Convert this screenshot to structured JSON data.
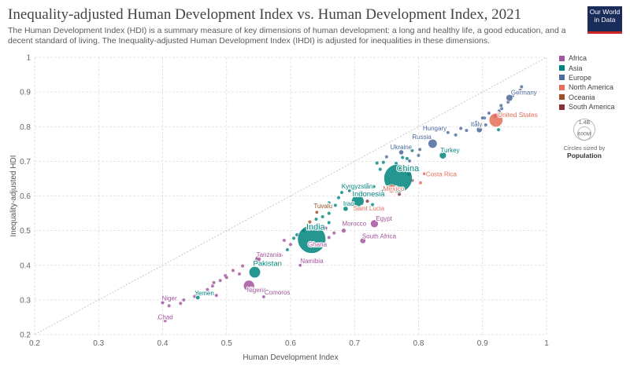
{
  "header": {
    "title": "Inequality-adjusted Human Development Index vs. Human Development Index, 2021",
    "subtitle": "The Human Development Index (HDI) is a summary measure of key dimensions of human development: a long and healthy life, a good education, and a decent standard of living. The Inequality-adjusted Human Development Index (IHDI) is adjusted for inequalities in these dimensions.",
    "logo_line1": "Our World",
    "logo_line2": "in Data"
  },
  "colors": {
    "Africa": "#a2559c",
    "Asia": "#00847e",
    "Europe": "#4c6a9c",
    "North America": "#e56e5a",
    "Oceania": "#9a5129",
    "South America": "#883039"
  },
  "legend": [
    "Africa",
    "Asia",
    "Europe",
    "North America",
    "Oceania",
    "South America"
  ],
  "size_legend": {
    "big": "1.4B",
    "small": "600M",
    "note": "Circles sized by",
    "variable": "Population"
  },
  "chart_data": {
    "type": "scatter",
    "xlabel": "Human Development Index",
    "ylabel": "Inequality-adjusted HDI",
    "xlim": [
      0.2,
      1.0
    ],
    "ylim": [
      0.2,
      1.0
    ],
    "xticks": [
      "0.2",
      "0.3",
      "0.4",
      "0.5",
      "0.6",
      "0.7",
      "0.8",
      "0.9",
      "1"
    ],
    "yticks": [
      "0.2",
      "0.3",
      "0.4",
      "0.5",
      "0.6",
      "0.7",
      "0.8",
      "0.9",
      "1"
    ],
    "grid": true,
    "diagonal": true,
    "legend_position": "top-right",
    "labeled_points": [
      {
        "label": "Germany",
        "region": "Europe",
        "x": 0.942,
        "y": 0.883,
        "pop": 0.083
      },
      {
        "label": "United States",
        "region": "North America",
        "x": 0.921,
        "y": 0.819,
        "pop": 0.336
      },
      {
        "label": "Italy",
        "region": "Europe",
        "x": 0.895,
        "y": 0.791,
        "pop": 0.059
      },
      {
        "label": "Hungary",
        "region": "Europe",
        "x": 0.846,
        "y": 0.783,
        "pop": 0.0097
      },
      {
        "label": "Russia",
        "region": "Europe",
        "x": 0.822,
        "y": 0.751,
        "pop": 0.145
      },
      {
        "label": "Turkey",
        "region": "Asia",
        "x": 0.838,
        "y": 0.717,
        "pop": 0.085
      },
      {
        "label": "Ukraine",
        "region": "Europe",
        "x": 0.773,
        "y": 0.726,
        "pop": 0.043
      },
      {
        "label": "China",
        "region": "Asia",
        "x": 0.768,
        "y": 0.651,
        "pop": 1.425
      },
      {
        "label": "Costa Rica",
        "region": "North America",
        "x": 0.809,
        "y": 0.664,
        "pop": 0.0052
      },
      {
        "label": "Mexico",
        "region": "North America",
        "x": 0.758,
        "y": 0.621,
        "pop": 0.126
      },
      {
        "label": "Kyrgyzstan",
        "region": "Asia",
        "x": 0.692,
        "y": 0.615,
        "pop": 0.0067
      },
      {
        "label": "Indonesia",
        "region": "Asia",
        "x": 0.705,
        "y": 0.585,
        "pop": 0.274
      },
      {
        "label": "Iraq",
        "region": "Asia",
        "x": 0.686,
        "y": 0.563,
        "pop": 0.044
      },
      {
        "label": "Saint Lucia",
        "region": "North America",
        "x": 0.715,
        "y": 0.56,
        "pop": 0.00018
      },
      {
        "label": "Tuvalu",
        "region": "Oceania",
        "x": 0.641,
        "y": 0.553,
        "pop": 1e-05
      },
      {
        "label": "Egypt",
        "region": "Africa",
        "x": 0.731,
        "y": 0.52,
        "pop": 0.109
      },
      {
        "label": "Morocco",
        "region": "Africa",
        "x": 0.683,
        "y": 0.5,
        "pop": 0.037
      },
      {
        "label": "India",
        "region": "Asia",
        "x": 0.633,
        "y": 0.475,
        "pop": 1.408
      },
      {
        "label": "South Africa",
        "region": "Africa",
        "x": 0.713,
        "y": 0.471,
        "pop": 0.06
      },
      {
        "label": "Ghana",
        "region": "Africa",
        "x": 0.632,
        "y": 0.458,
        "pop": 0.033
      },
      {
        "label": "Namibia",
        "region": "Africa",
        "x": 0.615,
        "y": 0.4,
        "pop": 0.0025
      },
      {
        "label": "Tanzania",
        "region": "Africa",
        "x": 0.549,
        "y": 0.418,
        "pop": 0.064
      },
      {
        "label": "Pakistan",
        "region": "Asia",
        "x": 0.544,
        "y": 0.38,
        "pop": 0.231
      },
      {
        "label": "Nigeria",
        "region": "Africa",
        "x": 0.535,
        "y": 0.341,
        "pop": 0.213
      },
      {
        "label": "Comoros",
        "region": "Africa",
        "x": 0.558,
        "y": 0.309,
        "pop": 0.00082
      },
      {
        "label": "Yemen",
        "region": "Asia",
        "x": 0.455,
        "y": 0.307,
        "pop": 0.033
      },
      {
        "label": "Niger",
        "region": "Africa",
        "x": 0.4,
        "y": 0.292,
        "pop": 0.025
      },
      {
        "label": "Chad",
        "region": "Africa",
        "x": 0.394,
        "y": 0.247,
        "pop": 0.017
      }
    ],
    "unlabeled_points": [
      {
        "region": "Europe",
        "x": 0.961,
        "y": 0.915
      },
      {
        "region": "Europe",
        "x": 0.959,
        "y": 0.905
      },
      {
        "region": "Europe",
        "x": 0.952,
        "y": 0.898
      },
      {
        "region": "Europe",
        "x": 0.947,
        "y": 0.889
      },
      {
        "region": "Europe",
        "x": 0.94,
        "y": 0.871
      },
      {
        "region": "Europe",
        "x": 0.93,
        "y": 0.852
      },
      {
        "region": "Europe",
        "x": 0.926,
        "y": 0.845
      },
      {
        "region": "Europe",
        "x": 0.929,
        "y": 0.861
      },
      {
        "region": "Asia",
        "x": 0.925,
        "y": 0.838
      },
      {
        "region": "Europe",
        "x": 0.92,
        "y": 0.83
      },
      {
        "region": "Europe",
        "x": 0.91,
        "y": 0.839
      },
      {
        "region": "Europe",
        "x": 0.903,
        "y": 0.825
      },
      {
        "region": "Asia",
        "x": 0.925,
        "y": 0.791
      },
      {
        "region": "Europe",
        "x": 0.905,
        "y": 0.805
      },
      {
        "region": "Europe",
        "x": 0.9,
        "y": 0.825
      },
      {
        "region": "Europe",
        "x": 0.89,
        "y": 0.812
      },
      {
        "region": "Europe",
        "x": 0.875,
        "y": 0.789
      },
      {
        "region": "Europe",
        "x": 0.866,
        "y": 0.795
      },
      {
        "region": "Europe",
        "x": 0.858,
        "y": 0.776
      },
      {
        "region": "Asia",
        "x": 0.81,
        "y": 0.766
      },
      {
        "region": "Europe",
        "x": 0.802,
        "y": 0.734
      },
      {
        "region": "Europe",
        "x": 0.8,
        "y": 0.717
      },
      {
        "region": "Asia",
        "x": 0.79,
        "y": 0.731
      },
      {
        "region": "Asia",
        "x": 0.782,
        "y": 0.708
      },
      {
        "region": "Europe",
        "x": 0.786,
        "y": 0.701
      },
      {
        "region": "Asia",
        "x": 0.775,
        "y": 0.711
      },
      {
        "region": "Asia",
        "x": 0.765,
        "y": 0.694
      },
      {
        "region": "Asia",
        "x": 0.745,
        "y": 0.697
      },
      {
        "region": "Europe",
        "x": 0.75,
        "y": 0.713
      },
      {
        "region": "Asia",
        "x": 0.74,
        "y": 0.677
      },
      {
        "region": "Asia",
        "x": 0.735,
        "y": 0.695
      },
      {
        "region": "Europe",
        "x": 0.795,
        "y": 0.682
      },
      {
        "region": "South America",
        "x": 0.79,
        "y": 0.645
      },
      {
        "region": "South America",
        "x": 0.785,
        "y": 0.662
      },
      {
        "region": "North America",
        "x": 0.803,
        "y": 0.638
      },
      {
        "region": "Asia",
        "x": 0.73,
        "y": 0.627
      },
      {
        "region": "Asia",
        "x": 0.72,
        "y": 0.632
      },
      {
        "region": "South America",
        "x": 0.77,
        "y": 0.605
      },
      {
        "region": "Asia",
        "x": 0.745,
        "y": 0.615
      },
      {
        "region": "Asia",
        "x": 0.71,
        "y": 0.61
      },
      {
        "region": "Asia",
        "x": 0.7,
        "y": 0.6
      },
      {
        "region": "Asia",
        "x": 0.68,
        "y": 0.61
      },
      {
        "region": "Asia",
        "x": 0.675,
        "y": 0.595
      },
      {
        "region": "Asia",
        "x": 0.69,
        "y": 0.58
      },
      {
        "region": "Asia",
        "x": 0.66,
        "y": 0.58
      },
      {
        "region": "Asia",
        "x": 0.67,
        "y": 0.573
      },
      {
        "region": "South America",
        "x": 0.71,
        "y": 0.6
      },
      {
        "region": "North America",
        "x": 0.7,
        "y": 0.575
      },
      {
        "region": "South America",
        "x": 0.72,
        "y": 0.585
      },
      {
        "region": "Asia",
        "x": 0.728,
        "y": 0.575
      },
      {
        "region": "Asia",
        "x": 0.66,
        "y": 0.55
      },
      {
        "region": "Asia",
        "x": 0.65,
        "y": 0.54
      },
      {
        "region": "Asia",
        "x": 0.64,
        "y": 0.533
      },
      {
        "region": "Asia",
        "x": 0.66,
        "y": 0.523
      },
      {
        "region": "Africa",
        "x": 0.655,
        "y": 0.507
      },
      {
        "region": "Oceania",
        "x": 0.63,
        "y": 0.525
      },
      {
        "region": "Asia",
        "x": 0.62,
        "y": 0.5
      },
      {
        "region": "Africa",
        "x": 0.66,
        "y": 0.48
      },
      {
        "region": "Africa",
        "x": 0.668,
        "y": 0.493
      },
      {
        "region": "Asia",
        "x": 0.61,
        "y": 0.488
      },
      {
        "region": "Asia",
        "x": 0.605,
        "y": 0.478
      },
      {
        "region": "Africa",
        "x": 0.59,
        "y": 0.472
      },
      {
        "region": "Africa",
        "x": 0.6,
        "y": 0.46
      },
      {
        "region": "Asia",
        "x": 0.595,
        "y": 0.445
      },
      {
        "region": "Africa",
        "x": 0.585,
        "y": 0.428
      },
      {
        "region": "Africa",
        "x": 0.57,
        "y": 0.43
      },
      {
        "region": "Africa",
        "x": 0.555,
        "y": 0.405
      },
      {
        "region": "Africa",
        "x": 0.525,
        "y": 0.398
      },
      {
        "region": "Africa",
        "x": 0.52,
        "y": 0.375
      },
      {
        "region": "Africa",
        "x": 0.51,
        "y": 0.385
      },
      {
        "region": "Africa",
        "x": 0.498,
        "y": 0.37
      },
      {
        "region": "Africa",
        "x": 0.49,
        "y": 0.356
      },
      {
        "region": "Africa",
        "x": 0.5,
        "y": 0.365
      },
      {
        "region": "Africa",
        "x": 0.48,
        "y": 0.35
      },
      {
        "region": "Africa",
        "x": 0.478,
        "y": 0.34
      },
      {
        "region": "Africa",
        "x": 0.47,
        "y": 0.33
      },
      {
        "region": "Africa",
        "x": 0.463,
        "y": 0.318
      },
      {
        "region": "Africa",
        "x": 0.484,
        "y": 0.313
      },
      {
        "region": "Africa",
        "x": 0.45,
        "y": 0.31
      },
      {
        "region": "Africa",
        "x": 0.433,
        "y": 0.3
      },
      {
        "region": "Africa",
        "x": 0.428,
        "y": 0.29
      },
      {
        "region": "Africa",
        "x": 0.41,
        "y": 0.283
      },
      {
        "region": "Africa",
        "x": 0.404,
        "y": 0.24
      }
    ]
  }
}
